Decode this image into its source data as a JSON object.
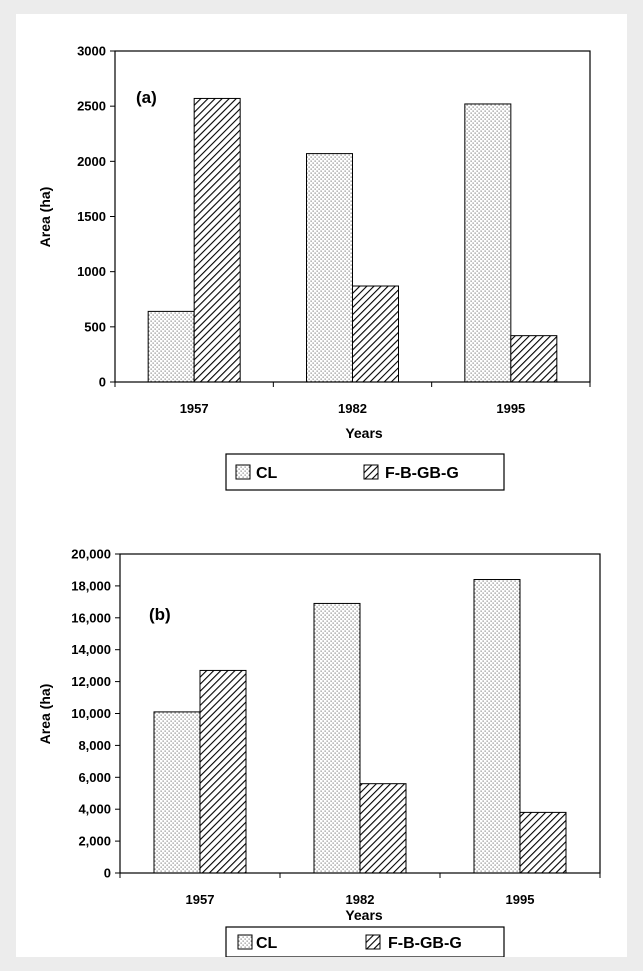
{
  "chart_data": [
    {
      "type": "bar",
      "panel_label": "(a)",
      "categories": [
        "1957",
        "1982",
        "1995"
      ],
      "series": [
        {
          "name": "CL",
          "values": [
            640,
            2070,
            2520
          ],
          "pattern": "dots"
        },
        {
          "name": "F-B-GB-G",
          "values": [
            2570,
            870,
            420
          ],
          "pattern": "hatch"
        }
      ],
      "xlabel": "Years",
      "ylabel": "Area (ha)",
      "ylim": [
        0,
        3000
      ],
      "yticks": [
        0,
        500,
        1000,
        1500,
        2000,
        2500,
        3000
      ],
      "ytick_labels": [
        "0",
        "500",
        "1000",
        "1500",
        "2000",
        "2500",
        "3000"
      ],
      "legend": [
        "CL",
        "F-B-GB-G"
      ],
      "legend_position": "bottom",
      "grid": false
    },
    {
      "type": "bar",
      "panel_label": "(b)",
      "categories": [
        "1957",
        "1982",
        "1995"
      ],
      "series": [
        {
          "name": "CL",
          "values": [
            10100,
            16900,
            18400
          ],
          "pattern": "dots"
        },
        {
          "name": "F-B-GB-G",
          "values": [
            12700,
            5600,
            3800
          ],
          "pattern": "hatch"
        }
      ],
      "xlabel": "Years",
      "ylabel": "Area (ha)",
      "ylim": [
        0,
        20000
      ],
      "yticks": [
        0,
        2000,
        4000,
        6000,
        8000,
        10000,
        12000,
        14000,
        16000,
        18000,
        20000
      ],
      "ytick_labels": [
        "0",
        "2,000",
        "4,000",
        "6,000",
        "8,000",
        "10,000",
        "12,000",
        "14,000",
        "16,000",
        "18,000",
        "20,000"
      ],
      "legend": [
        "CL",
        "F-B-GB-G"
      ],
      "legend_position": "bottom",
      "grid": false
    }
  ]
}
